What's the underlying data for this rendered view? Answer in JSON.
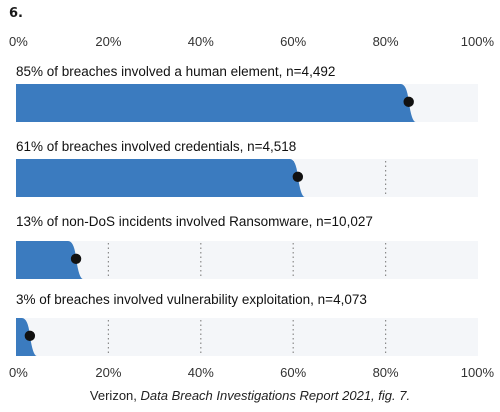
{
  "figure": {
    "number": "6.",
    "caption_source": "Verizon, ",
    "caption_title": "Data Breach Investigations Report 2021, fig. 7."
  },
  "colors": {
    "bar_fill": "#3b7bbf",
    "track_fill": "#f4f6f9",
    "dot": "#111111",
    "grid": "#8a8a8a"
  },
  "chart_data": {
    "type": "bar",
    "orientation": "horizontal",
    "xlim": [
      0,
      100
    ],
    "x_tick_labels": [
      "0%",
      "20%",
      "40%",
      "60%",
      "80%",
      "100%"
    ],
    "x_ticks": [
      0,
      20,
      40,
      60,
      80,
      100
    ],
    "grid": "dotted-vertical",
    "bars": [
      {
        "label": "85% of breaches involved a human element, n=4,492",
        "value": 85
      },
      {
        "label": "61% of breaches involved credentials, n=4,518",
        "value": 61
      },
      {
        "label": "13% of non-DoS incidents involved Ransomware, n=10,027",
        "value": 13
      },
      {
        "label": "3% of breaches involved vulnerability exploitation, n=4,073",
        "value": 3
      }
    ]
  }
}
